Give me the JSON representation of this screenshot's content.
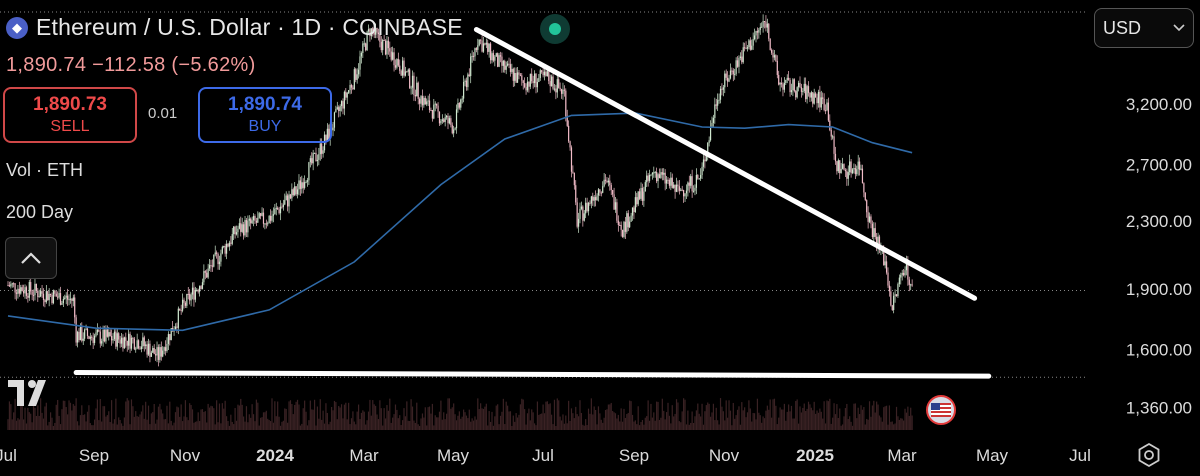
{
  "header": {
    "symbol_title": "Ethereum / U.S. Dollar · 1D · COINBASE",
    "price_change_line": "1,890.74 −112.58 (−5.62%)"
  },
  "trade": {
    "sell_price": "1,890.73",
    "sell_label": "SELL",
    "spread": "0.01",
    "buy_price": "1,890.74",
    "buy_label": "BUY"
  },
  "indicators": {
    "volume_label": "Vol · ETH",
    "ma_label": "200 Day"
  },
  "currency_select": {
    "value": "USD"
  },
  "colors": {
    "background": "#000000",
    "candle_up": "#cfe8cf",
    "candle_down": "#f2bcc8",
    "ma_line": "#2f6aa8",
    "trend_line": "#ffffff",
    "sell": "#ef4a4a",
    "buy": "#3d6ae8",
    "volume": "#3a2224"
  },
  "icons": {
    "asset": "ethereum-icon",
    "live": "live-dot-icon",
    "collapse": "chevron-up-icon",
    "logo": "tradingview-logo",
    "flag": "us-flag-icon",
    "settings": "settings-icon",
    "dropdown": "chevron-down-icon"
  },
  "chart_data": {
    "type": "candlestick",
    "title": "Ethereum / U.S. Dollar · 1D · COINBASE",
    "y_scale": "log",
    "ylim": [
      1240,
      4150
    ],
    "y_ticks": [
      "3,200.00",
      "2,700.00",
      "2,300.00",
      "1,900.00",
      "1,600.00",
      "1,360.00"
    ],
    "y_tick_values": [
      3200,
      2700,
      2300,
      1900,
      1600,
      1360
    ],
    "current_price": 1890.74,
    "x_ticks": [
      "Jul",
      "Sep",
      "Nov",
      "2024",
      "Mar",
      "May",
      "Jul",
      "Sep",
      "Nov",
      "2025",
      "Mar",
      "May",
      "Jul"
    ],
    "price_path": [
      [
        "2023-07-01",
        1920
      ],
      [
        "2023-08-16",
        1840
      ],
      [
        "2023-08-18",
        1670
      ],
      [
        "2023-10-01",
        1640
      ],
      [
        "2023-10-15",
        1570
      ],
      [
        "2023-11-01",
        1800
      ],
      [
        "2023-11-20",
        2010
      ],
      [
        "2023-12-10",
        2250
      ],
      [
        "2024-01-01",
        2320
      ],
      [
        "2024-01-20",
        2500
      ],
      [
        "2024-02-10",
        2900
      ],
      [
        "2024-03-01",
        3450
      ],
      [
        "2024-03-12",
        3950
      ],
      [
        "2024-04-01",
        3600
      ],
      [
        "2024-04-20",
        3200
      ],
      [
        "2024-05-10",
        3000
      ],
      [
        "2024-05-27",
        3850
      ],
      [
        "2024-06-10",
        3600
      ],
      [
        "2024-06-28",
        3400
      ],
      [
        "2024-07-15",
        3450
      ],
      [
        "2024-07-27",
        3300
      ],
      [
        "2024-08-05",
        2300
      ],
      [
        "2024-08-25",
        2600
      ],
      [
        "2024-09-06",
        2250
      ],
      [
        "2024-09-28",
        2650
      ],
      [
        "2024-10-15",
        2500
      ],
      [
        "2024-10-31",
        2600
      ],
      [
        "2024-11-12",
        3300
      ],
      [
        "2024-11-28",
        3650
      ],
      [
        "2024-12-16",
        4050
      ],
      [
        "2024-12-25",
        3400
      ],
      [
        "2025-01-15",
        3300
      ],
      [
        "2025-01-28",
        3200
      ],
      [
        "2025-02-03",
        2700
      ],
      [
        "2025-02-10",
        2650
      ],
      [
        "2025-02-20",
        2700
      ],
      [
        "2025-02-27",
        2300
      ],
      [
        "2025-03-10",
        2050
      ],
      [
        "2025-03-15",
        1800
      ],
      [
        "2025-03-24",
        2050
      ],
      [
        "2025-03-29",
        1890
      ]
    ],
    "ma_200_path": [
      [
        "2023-07-01",
        1760
      ],
      [
        "2023-09-01",
        1700
      ],
      [
        "2023-11-01",
        1690
      ],
      [
        "2024-01-01",
        1790
      ],
      [
        "2024-03-01",
        2050
      ],
      [
        "2024-05-01",
        2550
      ],
      [
        "2024-06-15",
        2900
      ],
      [
        "2024-08-01",
        3100
      ],
      [
        "2024-09-15",
        3120
      ],
      [
        "2024-11-01",
        3000
      ],
      [
        "2024-12-01",
        2990
      ],
      [
        "2025-01-01",
        3020
      ],
      [
        "2025-02-01",
        3000
      ],
      [
        "2025-03-01",
        2870
      ],
      [
        "2025-03-29",
        2790
      ]
    ],
    "trend_lines": [
      {
        "from": [
          "2024-05-26",
          3950
        ],
        "to": [
          "2025-05-12",
          1850
        ]
      },
      {
        "from": [
          "2023-08-18",
          1500
        ],
        "to": [
          "2025-05-22",
          1485
        ]
      }
    ],
    "dotted_levels": [
      4150,
      1890.74,
      1480
    ],
    "grid": false,
    "legend": "none"
  }
}
